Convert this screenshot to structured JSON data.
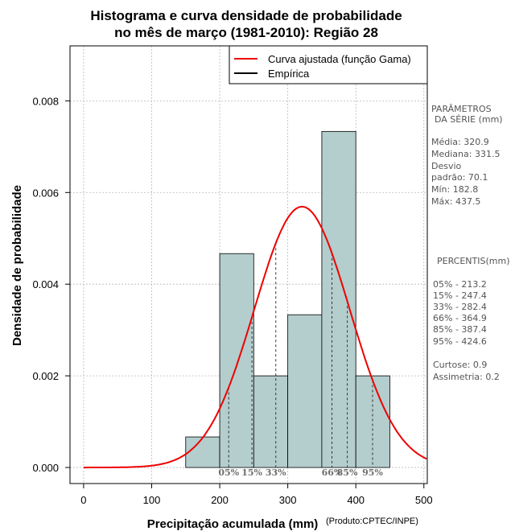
{
  "chart_data": {
    "type": "histogram",
    "title_line1": "Histograma e curva densidade de probabilidade",
    "title_line2": "no mês de março (1981-2010): Região 28",
    "xlabel": "Precipitação acumulada (mm)",
    "ylabel": "Densidade de probabilidade",
    "credit": "(Produto:CPTEC/INPE)",
    "xlim": [
      -20,
      505
    ],
    "ylim": [
      -0.00035,
      0.0092
    ],
    "x_ticks": [
      0,
      100,
      200,
      300,
      400,
      500
    ],
    "x_tick_labels": [
      "0",
      "100",
      "200",
      "300",
      "400",
      "500"
    ],
    "y_ticks": [
      0,
      0.002,
      0.004,
      0.006,
      0.008
    ],
    "y_tick_labels": [
      "0.000",
      "0.002",
      "0.004",
      "0.006",
      "0.008"
    ],
    "grid": true,
    "bars": [
      {
        "x0": 150,
        "x1": 200,
        "density": 0.000667
      },
      {
        "x0": 200,
        "x1": 250,
        "density": 0.004667
      },
      {
        "x0": 250,
        "x1": 300,
        "density": 0.002
      },
      {
        "x0": 300,
        "x1": 350,
        "density": 0.003333
      },
      {
        "x0": 350,
        "x1": 400,
        "density": 0.007333
      },
      {
        "x0": 400,
        "x1": 450,
        "density": 0.002
      }
    ],
    "bar_color": "#b4cdcd",
    "curve": {
      "label": "Curva ajustada (função Gama)",
      "color": "#ee0000",
      "mean": 320.9,
      "sd": 70.1,
      "x_start": 0,
      "x_end": 505
    },
    "legend": [
      {
        "label": "Curva ajustada (função Gama)",
        "color": "#ee0000"
      },
      {
        "label": "Empírica",
        "color": "#000000"
      }
    ],
    "percentile_markers": [
      {
        "label": "05%",
        "value": 213.2
      },
      {
        "label": "15%",
        "value": 247.4
      },
      {
        "label": "33%",
        "value": 282.4
      },
      {
        "label": "66%",
        "value": 364.9
      },
      {
        "label": "85%",
        "value": 387.4
      },
      {
        "label": "95%",
        "value": 424.6
      }
    ]
  },
  "side_panel": {
    "params_header_1": "PARÂMETROS",
    "params_header_2": "DA SÉRIE (mm)",
    "media": "Média:  320.9",
    "mediana": "Mediana:  331.5",
    "desvio_1": "Desvio",
    "desvio_2": "padrão:  70.1",
    "min": "Mín:  182.8",
    "max": "Máx:  437.5",
    "percentis_header": "PERCENTIS(mm)",
    "percentis": [
      "05% -  213.2",
      "15% -  247.4",
      "33% -  282.4",
      "66% -  364.9",
      "85% -  387.4",
      "95% -  424.6"
    ],
    "curtose": "Curtose:  0.9",
    "assimetria": "Assimetria:  0.2"
  }
}
